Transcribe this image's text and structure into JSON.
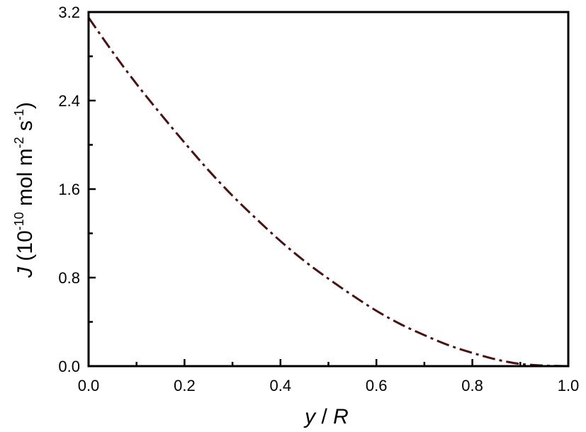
{
  "chart_data": {
    "type": "line",
    "xlabel": {
      "var": "y",
      "rest": " / ",
      "var2": "R"
    },
    "ylabel": {
      "var": "J",
      "p1": " (10",
      "e1": "-10",
      "p2": " mol m",
      "e2": "-2",
      "p3": " s",
      "e3": "-1",
      "p4": ")"
    },
    "xlim": [
      0.0,
      1.0
    ],
    "ylim": [
      0.0,
      3.2
    ],
    "x_ticks": [
      0.0,
      0.2,
      0.4,
      0.6,
      0.8,
      1.0
    ],
    "x_tick_labels": [
      "0.0",
      "0.2",
      "0.4",
      "0.6",
      "0.8",
      "1.0"
    ],
    "y_ticks": [
      0.0,
      0.8,
      1.6,
      2.4,
      3.2
    ],
    "y_tick_labels": [
      "0.0",
      "0.8",
      "1.6",
      "2.4",
      "3.2"
    ],
    "grid": false,
    "series": [
      {
        "style": "dash-dot",
        "color": "#4a1212",
        "x": [
          0.0,
          0.05,
          0.1,
          0.15,
          0.2,
          0.25,
          0.3,
          0.35,
          0.4,
          0.45,
          0.5,
          0.55,
          0.6,
          0.65,
          0.7,
          0.75,
          0.8,
          0.85,
          0.9,
          0.95,
          1.0
        ],
        "y": [
          3.15,
          2.84,
          2.55,
          2.28,
          2.02,
          1.77,
          1.54,
          1.33,
          1.13,
          0.95,
          0.79,
          0.64,
          0.5,
          0.38,
          0.28,
          0.19,
          0.12,
          0.06,
          0.02,
          0.005,
          0.0
        ]
      }
    ]
  }
}
